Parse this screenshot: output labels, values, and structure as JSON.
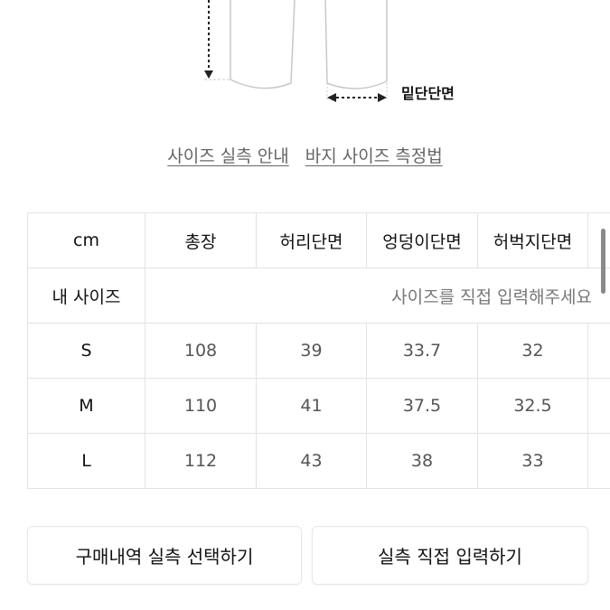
{
  "diagram": {
    "label": "밑단단면"
  },
  "links": [
    {
      "label": "사이즈 실측 안내"
    },
    {
      "label": "바지 사이즈 측정법"
    }
  ],
  "table": {
    "headers": [
      "cm",
      "총장",
      "허리단면",
      "엉덩이단면",
      "허벅지단면",
      ""
    ],
    "my_size": {
      "label": "내 사이즈",
      "placeholder": "사이즈를 직접 입력해주세요"
    },
    "rows": [
      {
        "size": "S",
        "values": [
          "108",
          "39",
          "33.7",
          "32",
          ""
        ]
      },
      {
        "size": "M",
        "values": [
          "110",
          "41",
          "37.5",
          "32.5",
          ""
        ]
      },
      {
        "size": "L",
        "values": [
          "112",
          "43",
          "38",
          "33",
          ""
        ]
      }
    ]
  },
  "buttons": {
    "purchase_history": "구매내역 실측 선택하기",
    "direct_input": "실측 직접 입력하기"
  }
}
